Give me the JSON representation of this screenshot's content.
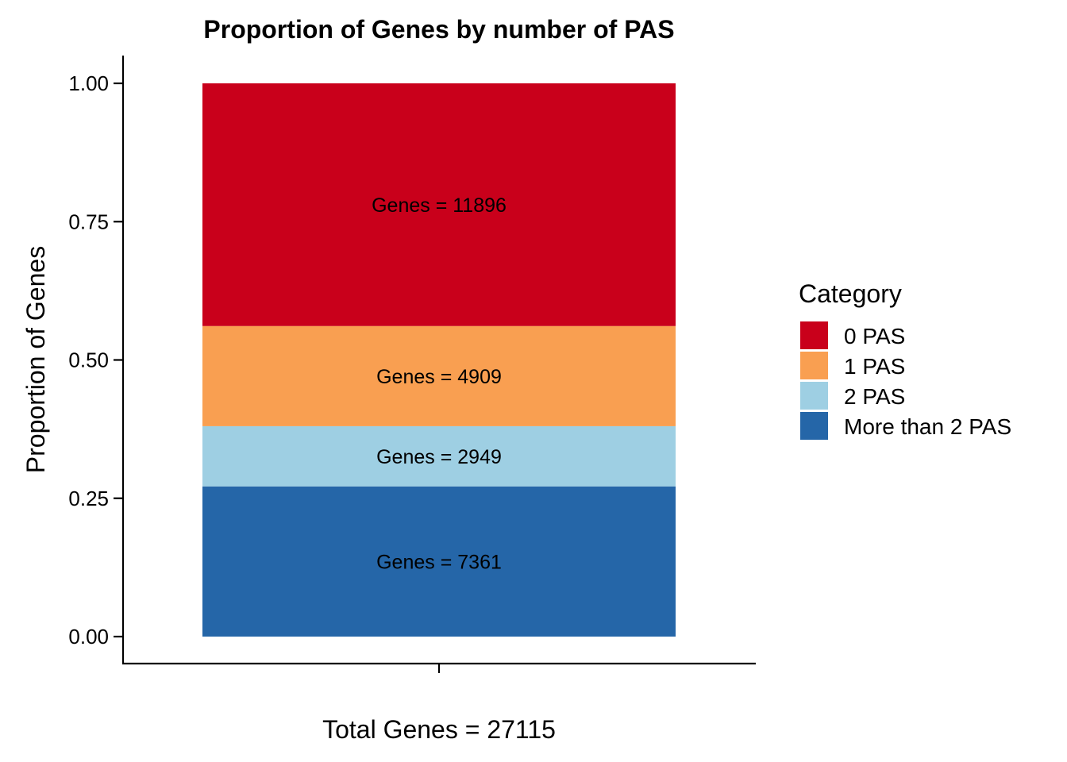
{
  "chart_data": {
    "type": "bar",
    "stacked": true,
    "title": "Proportion of Genes by number of PAS",
    "xlabel": "Total Genes = 27115",
    "ylabel": "Proportion of Genes",
    "ylim": [
      0,
      1
    ],
    "yticks": [
      "0.00",
      "0.25",
      "0.50",
      "0.75",
      "1.00"
    ],
    "categories": [
      ""
    ],
    "grid": false,
    "legend": {
      "title": "Category",
      "position": "right"
    },
    "series": [
      {
        "name": "More than 2 PAS",
        "count": 7361,
        "value": 0.2715,
        "label": "Genes = 7361",
        "color": "#2566A8"
      },
      {
        "name": "2 PAS",
        "count": 2949,
        "value": 0.1088,
        "label": "Genes = 2949",
        "color": "#9ECFE3"
      },
      {
        "name": "1 PAS",
        "count": 4909,
        "value": 0.181,
        "label": "Genes = 4909",
        "color": "#F99F51"
      },
      {
        "name": "0 PAS",
        "count": 11896,
        "value": 0.4387,
        "label": "Genes = 11896",
        "color": "#C9001B"
      }
    ],
    "legend_order": [
      "0 PAS",
      "1 PAS",
      "2 PAS",
      "More than 2 PAS"
    ]
  }
}
